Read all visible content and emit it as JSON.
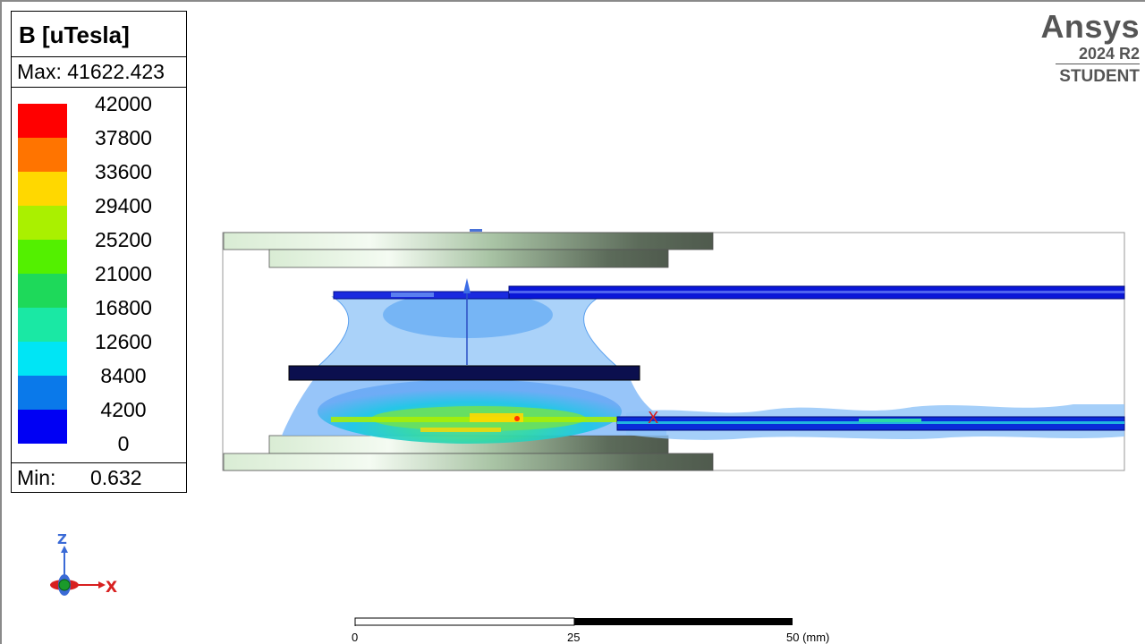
{
  "legend": {
    "title": "B [uTesla]",
    "max_label": "Max: 41622.423",
    "min_label": "Min:",
    "min_value": "0.632",
    "ticks": [
      "42000",
      "37800",
      "33600",
      "29400",
      "25200",
      "21000",
      "16800",
      "12600",
      "8400",
      "4200",
      "0"
    ],
    "colors": [
      "#ff0000",
      "#ff7400",
      "#ffd800",
      "#aaf000",
      "#53f000",
      "#1ed95a",
      "#1ae8a4",
      "#00e5f5",
      "#0a79ea",
      "#0000f4"
    ]
  },
  "brand": {
    "name": "Ansys",
    "version": "2024 R2",
    "edition": "STUDENT"
  },
  "triad": {
    "z_label": "Z",
    "x_label": "X"
  },
  "scale_bar": {
    "labels": [
      "0",
      "25",
      "50 (mm)"
    ]
  }
}
